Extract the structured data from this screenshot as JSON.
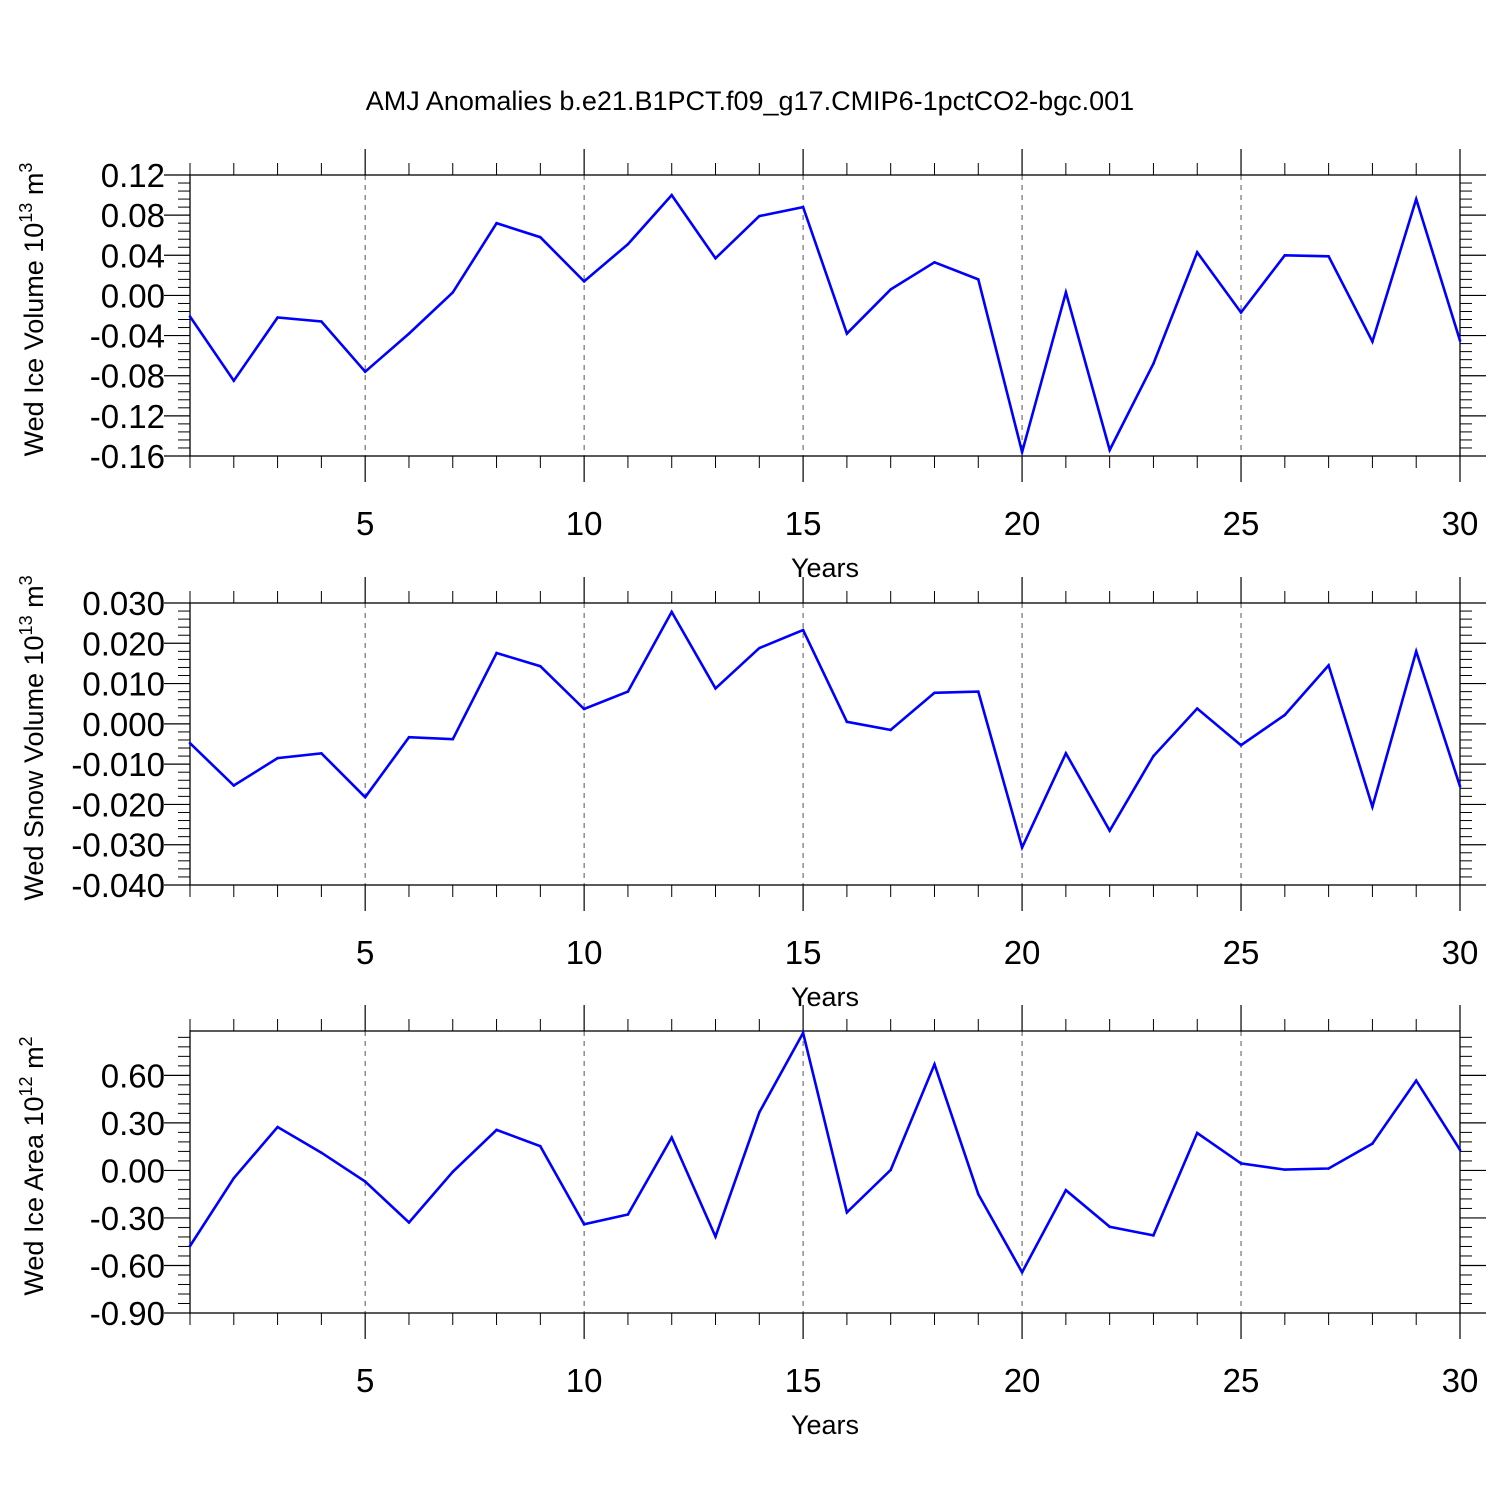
{
  "title": "AMJ Anomalies b.e21.B1PCT.f09_g17.CMIP6-1pctCO2-bgc.001",
  "colors": {
    "line": "#0000ff",
    "axis": "#000000",
    "grid": "#555555"
  },
  "chart_data": [
    {
      "type": "line",
      "title": "AMJ Anomalies b.e21.B1PCT.f09_g17.CMIP6-1pctCO2-bgc.001",
      "xlabel": "Years",
      "ylabel": {
        "text": "Wed Ice Volume 10",
        "sup": "13",
        "unit": " m",
        "unit_sup": "3"
      },
      "xlim": [
        1,
        30
      ],
      "ylim": [
        -0.16,
        0.12
      ],
      "xticks": [
        5,
        10,
        15,
        20,
        25,
        30
      ],
      "yticks": [
        -0.16,
        -0.12,
        -0.08,
        -0.04,
        0.0,
        0.04,
        0.08,
        0.12
      ],
      "ytick_labels": [
        "-0.16",
        "-0.12",
        "-0.08",
        "-0.04",
        "0.00",
        "0.04",
        "0.08",
        "0.12"
      ],
      "grid": "vertical dashed at major x ticks",
      "x": [
        1,
        2,
        3,
        4,
        5,
        6,
        7,
        8,
        9,
        10,
        11,
        12,
        13,
        14,
        15,
        16,
        17,
        18,
        19,
        20,
        21,
        22,
        23,
        24,
        25,
        26,
        27,
        28,
        29,
        30
      ],
      "y": [
        -0.021,
        -0.085,
        -0.022,
        -0.026,
        -0.076,
        -0.038,
        0.003,
        0.072,
        0.058,
        0.014,
        0.051,
        0.1,
        0.037,
        0.079,
        0.088,
        -0.038,
        0.006,
        0.033,
        0.016,
        -0.156,
        0.003,
        -0.154,
        -0.068,
        0.043,
        -0.017,
        0.04,
        0.039,
        -0.046,
        0.096,
        -0.045
      ]
    },
    {
      "type": "line",
      "xlabel": "Years",
      "ylabel": {
        "text": "Wed Snow Volume 10",
        "sup": "13",
        "unit": " m",
        "unit_sup": "3"
      },
      "xlim": [
        1,
        30
      ],
      "ylim": [
        -0.04,
        0.03
      ],
      "xticks": [
        5,
        10,
        15,
        20,
        25,
        30
      ],
      "yticks": [
        -0.04,
        -0.03,
        -0.02,
        -0.01,
        0.0,
        0.01,
        0.02,
        0.03
      ],
      "ytick_labels": [
        "-0.040",
        "-0.030",
        "-0.020",
        "-0.010",
        "0.000",
        "0.010",
        "0.020",
        "0.030"
      ],
      "grid": "vertical dashed at major x ticks",
      "x": [
        1,
        2,
        3,
        4,
        5,
        6,
        7,
        8,
        9,
        10,
        11,
        12,
        13,
        14,
        15,
        16,
        17,
        18,
        19,
        20,
        21,
        22,
        23,
        24,
        25,
        26,
        27,
        28,
        29,
        30
      ],
      "y": [
        -0.0048,
        -0.0153,
        -0.0085,
        -0.0073,
        -0.0182,
        -0.0033,
        -0.0038,
        0.0176,
        0.0143,
        0.0037,
        0.008,
        0.0278,
        0.0088,
        0.0188,
        0.0233,
        0.0005,
        -0.0015,
        0.0077,
        0.008,
        -0.0307,
        -0.0073,
        -0.0265,
        -0.008,
        0.0038,
        -0.0053,
        0.0022,
        0.0145,
        -0.0206,
        0.018,
        -0.0155
      ]
    },
    {
      "type": "line",
      "xlabel": "Years",
      "ylabel": {
        "text": "Wed Ice Area 10",
        "sup": "12",
        "unit": " m",
        "unit_sup": "2"
      },
      "xlim": [
        1,
        30
      ],
      "ylim": [
        -0.9,
        0.88
      ],
      "xticks": [
        5,
        10,
        15,
        20,
        25,
        30
      ],
      "yticks": [
        -0.9,
        -0.6,
        -0.3,
        0.0,
        0.3,
        0.6
      ],
      "ytick_labels": [
        "-0.90",
        "-0.60",
        "-0.30",
        "0.00",
        "0.30",
        "0.60"
      ],
      "grid": "vertical dashed at major x ticks",
      "x": [
        1,
        2,
        3,
        4,
        5,
        6,
        7,
        8,
        9,
        10,
        11,
        12,
        13,
        14,
        15,
        16,
        17,
        18,
        19,
        20,
        21,
        22,
        23,
        24,
        25,
        26,
        27,
        28,
        29,
        30
      ],
      "y": [
        -0.477,
        -0.049,
        0.274,
        0.112,
        -0.07,
        -0.329,
        -0.009,
        0.256,
        0.153,
        -0.34,
        -0.278,
        0.208,
        -0.418,
        0.366,
        0.868,
        -0.265,
        0.003,
        0.67,
        -0.15,
        -0.643,
        -0.125,
        -0.356,
        -0.41,
        0.236,
        0.044,
        0.005,
        0.012,
        0.169,
        0.567,
        0.13
      ]
    }
  ]
}
